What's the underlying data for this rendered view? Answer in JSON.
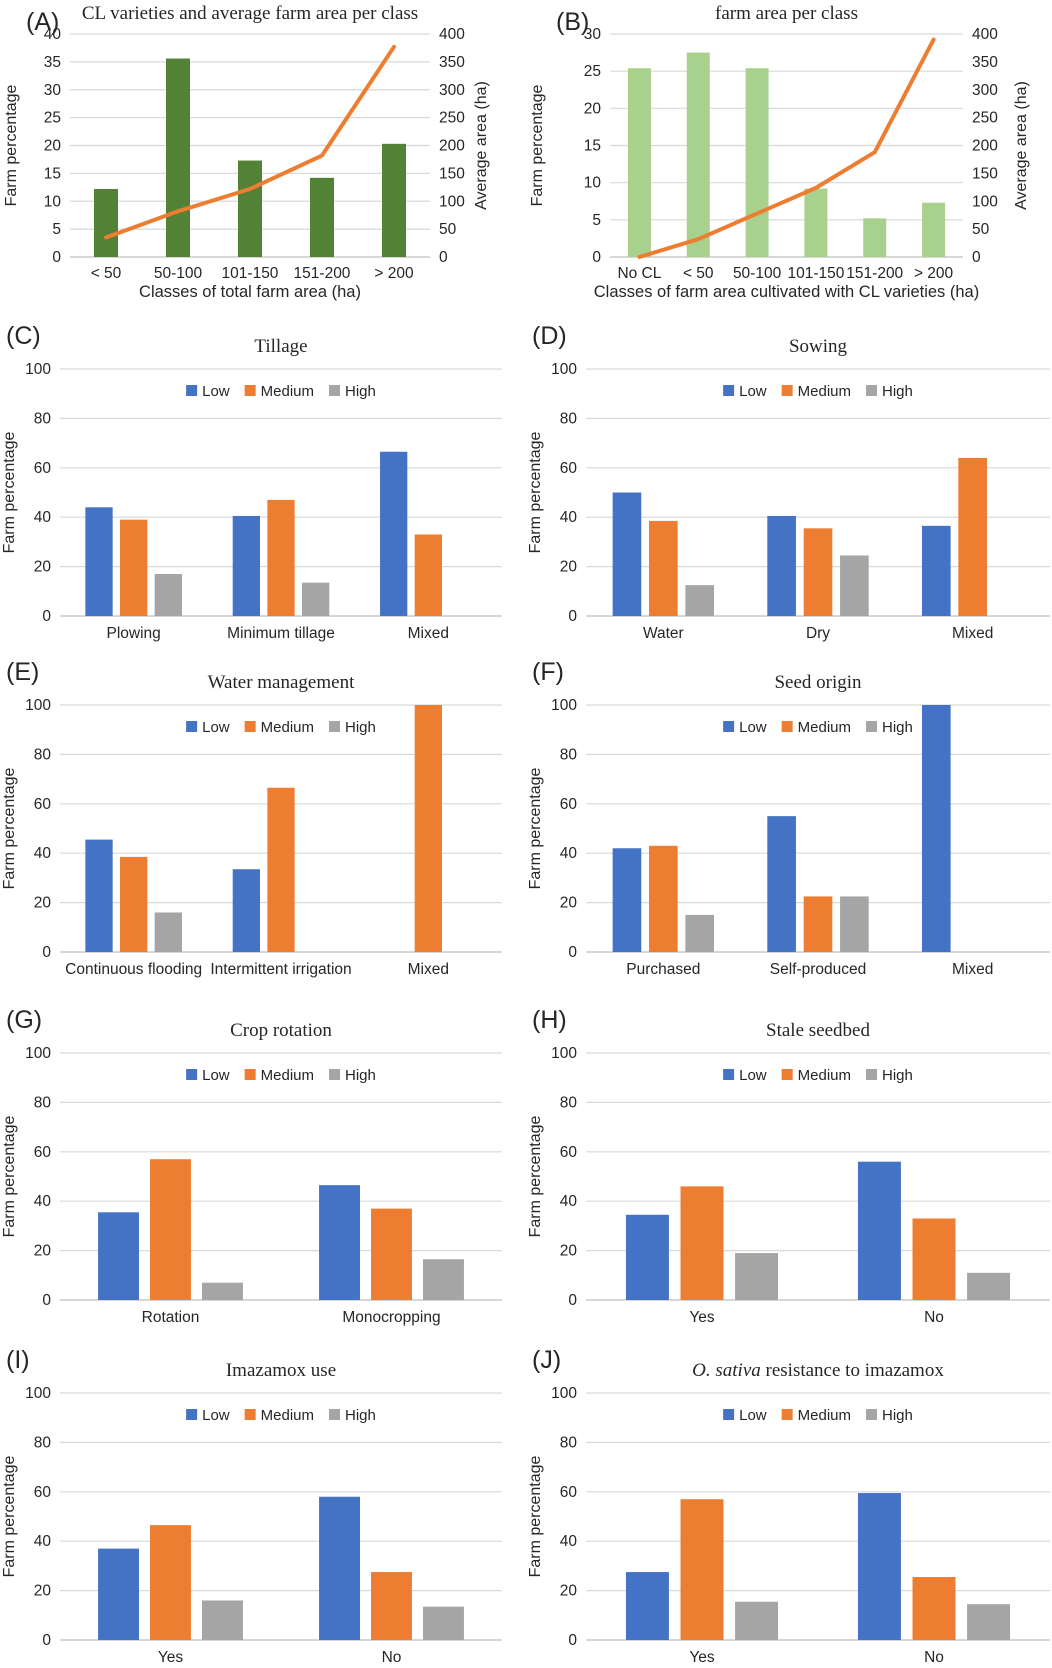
{
  "figure": {
    "description_colors": {
      "low_blue": "#4472C4",
      "medium_orange": "#ED7D31",
      "high_gray": "#A5A5A5",
      "dark_green_bar": "#538135",
      "light_green_bar": "#A9D18E",
      "line_orange": "#ED7D31",
      "gridline": "#D9D9D9",
      "axis_line": "#BFBFBF"
    }
  },
  "chart_data": [
    {
      "id": "A",
      "label": "(A)",
      "type": "bar-line",
      "title": [
        {
          "text": "CL varieties and average farm area per class",
          "italic": false
        }
      ],
      "y_left": {
        "title": "Farm percentage",
        "min": 0,
        "max": 40,
        "step": 5
      },
      "y_right": {
        "title": "Average area (ha)",
        "min": 0,
        "max": 400,
        "step": 50
      },
      "x_title": "Classes of total farm area (ha)",
      "categories": [
        "< 50",
        "50-100",
        "101-150",
        "151-200",
        "> 200"
      ],
      "bars": {
        "name": "Farm percentage",
        "color": "#538135",
        "values": [
          12.2,
          35.6,
          17.3,
          14.2,
          20.3
        ]
      },
      "line": {
        "name": "Average area (ha)",
        "color": "#ED7D31",
        "values": [
          35,
          82,
          122,
          182,
          377
        ]
      }
    },
    {
      "id": "B",
      "label": "(B)",
      "type": "bar-line",
      "title": [
        {
          "text": "farm area per class",
          "italic": false
        }
      ],
      "y_left": {
        "title": "Farm percentage",
        "min": 0,
        "max": 30,
        "step": 5
      },
      "y_right": {
        "title": "Average area (ha)",
        "min": 0,
        "max": 400,
        "step": 50
      },
      "x_title": "Classes of farm area cultivated with CL varieties (ha)",
      "categories": [
        "No CL",
        "< 50",
        "50-100",
        "101-150",
        "151-200",
        "> 200"
      ],
      "bars": {
        "name": "Farm percentage",
        "color": "#A9D18E",
        "values": [
          25.4,
          27.5,
          25.4,
          9.2,
          5.2,
          7.3
        ]
      },
      "line": {
        "name": "Average area (ha)",
        "color": "#ED7D31",
        "values": [
          0,
          32,
          78,
          124,
          188,
          390
        ]
      }
    },
    {
      "id": "C",
      "label": "(C)",
      "type": "grouped-bar",
      "title": [
        {
          "text": "Tillage",
          "italic": false
        }
      ],
      "y_left": {
        "title": "Farm percentage",
        "min": 0,
        "max": 100,
        "step": 20
      },
      "categories": [
        "Plowing",
        "Minimum tillage",
        "Mixed"
      ],
      "series": [
        {
          "name": "Low",
          "color": "#4472C4",
          "values": [
            44,
            40.5,
            66.5
          ]
        },
        {
          "name": "Medium",
          "color": "#ED7D31",
          "values": [
            39,
            47,
            33
          ]
        },
        {
          "name": "High",
          "color": "#A5A5A5",
          "values": [
            17,
            13.5,
            0
          ]
        }
      ]
    },
    {
      "id": "D",
      "label": "(D)",
      "type": "grouped-bar",
      "title": [
        {
          "text": "Sowing",
          "italic": false
        }
      ],
      "y_left": {
        "title": "Farm percentage",
        "min": 0,
        "max": 100,
        "step": 20
      },
      "categories": [
        "Water",
        "Dry",
        "Mixed"
      ],
      "series": [
        {
          "name": "Low",
          "color": "#4472C4",
          "values": [
            50,
            40.5,
            36.5
          ]
        },
        {
          "name": "Medium",
          "color": "#ED7D31",
          "values": [
            38.5,
            35.5,
            64
          ]
        },
        {
          "name": "High",
          "color": "#A5A5A5",
          "values": [
            12.5,
            24.5,
            0
          ]
        }
      ]
    },
    {
      "id": "E",
      "label": "(E)",
      "type": "grouped-bar",
      "title": [
        {
          "text": "Water management",
          "italic": false
        }
      ],
      "y_left": {
        "title": "Farm percentage",
        "min": 0,
        "max": 100,
        "step": 20
      },
      "categories": [
        "Continuous flooding",
        "Intermittent irrigation",
        "Mixed"
      ],
      "series": [
        {
          "name": "Low",
          "color": "#4472C4",
          "values": [
            45.5,
            33.5,
            0
          ]
        },
        {
          "name": "Medium",
          "color": "#ED7D31",
          "values": [
            38.5,
            66.5,
            100
          ]
        },
        {
          "name": "High",
          "color": "#A5A5A5",
          "values": [
            16,
            0,
            0
          ]
        }
      ]
    },
    {
      "id": "F",
      "label": "(F)",
      "type": "grouped-bar",
      "title": [
        {
          "text": "Seed origin",
          "italic": false
        }
      ],
      "y_left": {
        "title": "Farm percentage",
        "min": 0,
        "max": 100,
        "step": 20
      },
      "categories": [
        "Purchased",
        "Self-produced",
        "Mixed"
      ],
      "series": [
        {
          "name": "Low",
          "color": "#4472C4",
          "values": [
            42,
            55,
            100
          ]
        },
        {
          "name": "Medium",
          "color": "#ED7D31",
          "values": [
            43,
            22.5,
            0
          ]
        },
        {
          "name": "High",
          "color": "#A5A5A5",
          "values": [
            15,
            22.5,
            0
          ]
        }
      ]
    },
    {
      "id": "G",
      "label": "(G)",
      "type": "grouped-bar",
      "title": [
        {
          "text": "Crop rotation",
          "italic": false
        }
      ],
      "y_left": {
        "title": "Farm percentage",
        "min": 0,
        "max": 100,
        "step": 20
      },
      "categories": [
        "Rotation",
        "Monocropping"
      ],
      "series": [
        {
          "name": "Low",
          "color": "#4472C4",
          "values": [
            35.5,
            46.5
          ]
        },
        {
          "name": "Medium",
          "color": "#ED7D31",
          "values": [
            57,
            37
          ]
        },
        {
          "name": "High",
          "color": "#A5A5A5",
          "values": [
            7,
            16.5
          ]
        }
      ]
    },
    {
      "id": "H",
      "label": "(H)",
      "type": "grouped-bar",
      "title": [
        {
          "text": "Stale seedbed",
          "italic": false
        }
      ],
      "y_left": {
        "title": "Farm percentage",
        "min": 0,
        "max": 100,
        "step": 20
      },
      "categories": [
        "Yes",
        "No"
      ],
      "series": [
        {
          "name": "Low",
          "color": "#4472C4",
          "values": [
            34.5,
            56
          ]
        },
        {
          "name": "Medium",
          "color": "#ED7D31",
          "values": [
            46,
            33
          ]
        },
        {
          "name": "High",
          "color": "#A5A5A5",
          "values": [
            19,
            11
          ]
        }
      ]
    },
    {
      "id": "I",
      "label": "(I)",
      "type": "grouped-bar",
      "title": [
        {
          "text": "Imazamox use",
          "italic": false
        }
      ],
      "y_left": {
        "title": "Farm percentage",
        "min": 0,
        "max": 100,
        "step": 20
      },
      "categories": [
        "Yes",
        "No"
      ],
      "series": [
        {
          "name": "Low",
          "color": "#4472C4",
          "values": [
            37,
            58
          ]
        },
        {
          "name": "Medium",
          "color": "#ED7D31",
          "values": [
            46.5,
            27.5
          ]
        },
        {
          "name": "High",
          "color": "#A5A5A5",
          "values": [
            16,
            13.5
          ]
        }
      ]
    },
    {
      "id": "J",
      "label": "(J)",
      "type": "grouped-bar",
      "title": [
        {
          "text": "O. sativa ",
          "italic": true
        },
        {
          "text": "resistance to imazamox",
          "italic": false
        }
      ],
      "y_left": {
        "title": "Farm percentage",
        "min": 0,
        "max": 100,
        "step": 20
      },
      "categories": [
        "Yes",
        "No"
      ],
      "series": [
        {
          "name": "Low",
          "color": "#4472C4",
          "values": [
            27.5,
            59.5
          ]
        },
        {
          "name": "Medium",
          "color": "#ED7D31",
          "values": [
            57,
            25.5
          ]
        },
        {
          "name": "High",
          "color": "#A5A5A5",
          "values": [
            15.5,
            14.5
          ]
        }
      ]
    }
  ]
}
